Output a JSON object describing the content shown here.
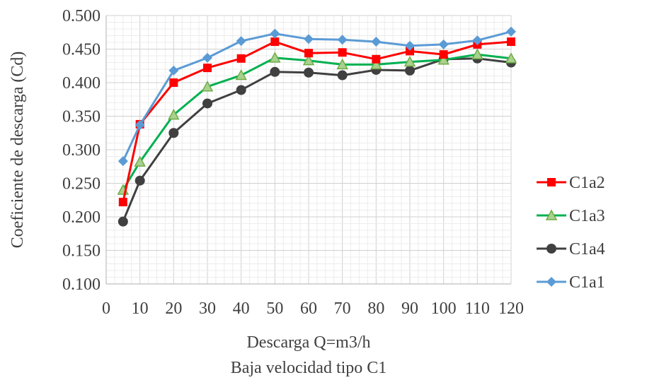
{
  "chart_data": {
    "type": "line",
    "xlabel": "Descarga Q=m3/h",
    "subtitle": "Baja velocidad tipo C1",
    "ylabel": "Coeficiente de descarga (Cd)",
    "x": [
      5,
      10,
      20,
      30,
      40,
      50,
      60,
      70,
      80,
      90,
      100,
      110,
      120
    ],
    "x_ticks": [
      "0",
      "10",
      "20",
      "30",
      "40",
      "50",
      "60",
      "70",
      "80",
      "90",
      "100",
      "110",
      "120"
    ],
    "y_ticks": [
      "0.100",
      "0.150",
      "0.200",
      "0.250",
      "0.300",
      "0.350",
      "0.400",
      "0.450",
      "0.500"
    ],
    "xlim": [
      0,
      120
    ],
    "ylim": [
      0.1,
      0.5
    ],
    "grid": true,
    "legend_position": "right",
    "series": [
      {
        "name": "C1a2",
        "color": "#ff0000",
        "marker": "square",
        "values": [
          0.222,
          0.338,
          0.4,
          0.422,
          0.436,
          0.461,
          0.444,
          0.445,
          0.435,
          0.447,
          0.442,
          0.457,
          0.461
        ]
      },
      {
        "name": "C1a3",
        "color": "#00b050",
        "marker": "triangle",
        "values": [
          0.24,
          0.282,
          0.352,
          0.394,
          0.411,
          0.437,
          0.433,
          0.427,
          0.427,
          0.431,
          0.434,
          0.442,
          0.436
        ]
      },
      {
        "name": "C1a4",
        "color": "#404040",
        "marker": "circle",
        "values": [
          0.193,
          0.254,
          0.325,
          0.369,
          0.389,
          0.416,
          0.415,
          0.411,
          0.419,
          0.418,
          0.435,
          0.436,
          0.43
        ]
      },
      {
        "name": "C1a1",
        "color": "#5b9bd5",
        "marker": "diamond",
        "values": [
          0.283,
          0.337,
          0.418,
          0.437,
          0.462,
          0.473,
          0.465,
          0.464,
          0.461,
          0.455,
          0.457,
          0.463,
          0.476
        ]
      }
    ]
  }
}
